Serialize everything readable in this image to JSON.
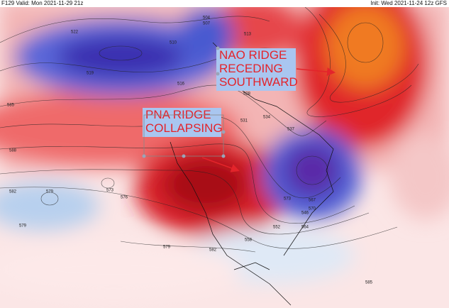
{
  "header": {
    "valid": "F129 Valid: Mon 2021-11-29 21z",
    "init": "Init: Wed 2021-11-24 12z GFS"
  },
  "annotations": [
    {
      "lines": [
        "NAO RIDGE",
        "RECEDING",
        "SOUTHWARD"
      ]
    },
    {
      "lines": [
        "PNA RIDGE",
        "COLLAPSING"
      ]
    }
  ],
  "contour_labels": [
    "522",
    "510",
    "504",
    "507",
    "513",
    "516",
    "519",
    "528",
    "531",
    "534",
    "537",
    "546",
    "552",
    "558",
    "564",
    "567",
    "570",
    "573",
    "576",
    "579",
    "582",
    "585",
    "588",
    "579",
    "573",
    "582",
    "579",
    "585"
  ]
}
